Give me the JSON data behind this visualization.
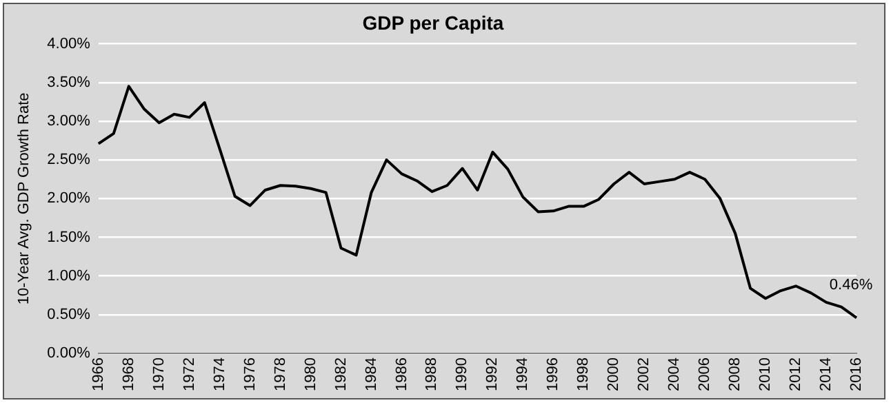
{
  "chart_data": {
    "type": "line",
    "title": "GDP per Capita",
    "ylabel": "10-Year Avg. GDP Growth Rate",
    "categories": [
      "1966",
      null,
      "1968",
      null,
      "1970",
      null,
      "1972",
      null,
      "1974",
      null,
      "1976",
      null,
      "1978",
      null,
      "1980",
      null,
      "1982",
      null,
      "1984",
      null,
      "1986",
      null,
      "1988",
      null,
      "1990",
      null,
      "1992",
      null,
      "1994",
      null,
      "1996",
      null,
      "1998",
      null,
      "2000",
      null,
      "2002",
      null,
      "2004",
      null,
      "2006",
      null,
      "2008",
      null,
      "2010",
      null,
      "2012",
      null,
      "2014",
      null,
      "2016"
    ],
    "series": [
      {
        "color": "#000000",
        "values": [
          2.71,
          2.84,
          3.45,
          3.16,
          2.98,
          3.09,
          3.05,
          3.24,
          2.64,
          2.03,
          1.91,
          2.11,
          2.17,
          2.16,
          2.13,
          2.08,
          1.36,
          1.27,
          2.08,
          2.5,
          2.32,
          2.23,
          2.09,
          2.17,
          2.39,
          2.11,
          2.6,
          2.38,
          2.02,
          1.83,
          1.84,
          1.9,
          1.9,
          1.99,
          2.19,
          2.34,
          2.19,
          2.22,
          2.25,
          2.34,
          2.25,
          2,
          1.55,
          0.84,
          0.71,
          0.81,
          0.87,
          0.78,
          0.66,
          0.6,
          0.46
        ]
      }
    ],
    "ylim": [
      0,
      4
    ],
    "yticks": [
      {
        "value": 0,
        "label": "0.00%"
      },
      {
        "value": 0.5,
        "label": "0.50%"
      },
      {
        "value": 1,
        "label": "1.00%"
      },
      {
        "value": 1.5,
        "label": "1.50%"
      },
      {
        "value": 2,
        "label": "2.00%"
      },
      {
        "value": 2.5,
        "label": "2.50%"
      },
      {
        "value": 3,
        "label": "3.00%"
      },
      {
        "value": 3.5,
        "label": "3.50%"
      },
      {
        "value": 4,
        "label": "4.00%"
      }
    ],
    "annotations": [
      {
        "text": "0.46%",
        "x": "2016",
        "y": 0.46
      }
    ],
    "grid": "y",
    "legend": false,
    "marker": "none",
    "line_style": "solid"
  }
}
